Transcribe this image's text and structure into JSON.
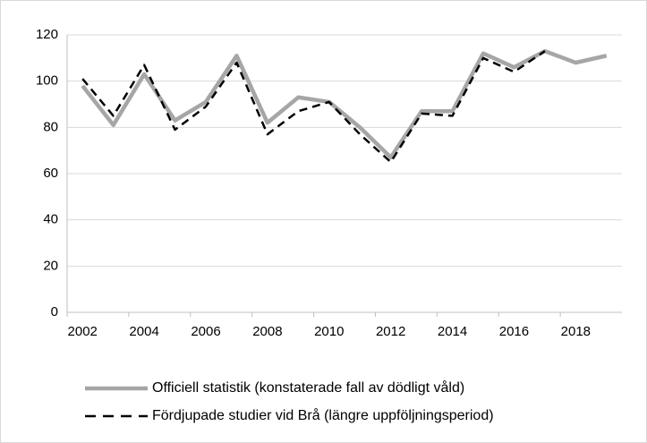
{
  "chart_data": {
    "type": "line",
    "categories": [
      "2002",
      null,
      "2004",
      null,
      "2006",
      null,
      "2008",
      null,
      "2010",
      null,
      "2012",
      null,
      "2014",
      null,
      "2016",
      null,
      "2018",
      null
    ],
    "series": [
      {
        "name": "Officiell statistik (konstaterade fall av dödligt våld)",
        "color": "#a6a6a6",
        "dash": false,
        "values": [
          98,
          81,
          103,
          83,
          91,
          111,
          82,
          93,
          91,
          80,
          67,
          87,
          87,
          112,
          106,
          113,
          108,
          111
        ]
      },
      {
        "name": "Fördjupade studier vid Brå (längre uppföljningsperiod)",
        "color": "#000000",
        "dash": true,
        "values": [
          101,
          85,
          107,
          79,
          89,
          108,
          77,
          87,
          91,
          77,
          65,
          86,
          85,
          110,
          104,
          113,
          null,
          null
        ]
      }
    ],
    "ylim": [
      0,
      120
    ],
    "yticks": [
      0,
      20,
      40,
      60,
      80,
      100,
      120
    ],
    "grid": true,
    "legend": "bottom"
  }
}
